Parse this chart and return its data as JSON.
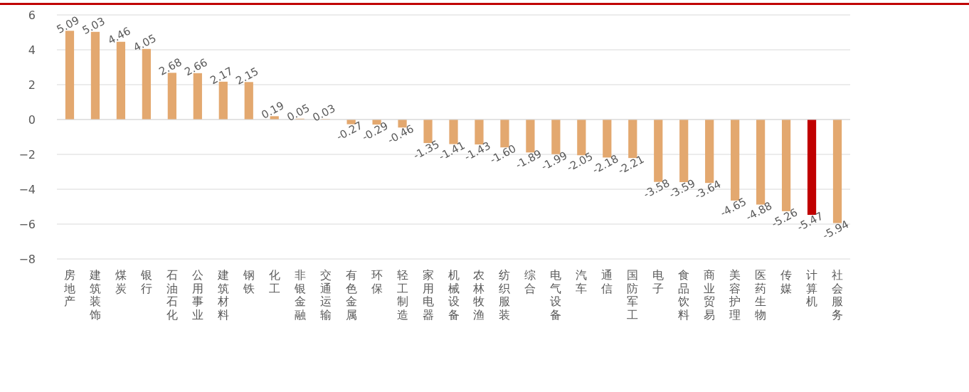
{
  "chart_data": {
    "type": "bar",
    "categories": [
      "房地产",
      "建筑装饰",
      "煤炭",
      "银行",
      "石油石化",
      "公用事业",
      "建筑材料",
      "钢铁",
      "化工",
      "非银金融",
      "交通运输",
      "有色金属",
      "环保",
      "轻工制造",
      "家用电器",
      "机械设备",
      "农林牧渔",
      "纺织服装",
      "综合",
      "电气设备",
      "汽车",
      "通信",
      "国防军工",
      "电子",
      "食品饮料",
      "商业贸易",
      "美容护理",
      "医药生物",
      "传媒",
      "计算机",
      "社会服务"
    ],
    "values": [
      5.09,
      5.03,
      4.46,
      4.05,
      2.68,
      2.66,
      2.17,
      2.15,
      0.19,
      0.05,
      0.03,
      -0.27,
      -0.29,
      -0.46,
      -1.35,
      -1.41,
      -1.43,
      -1.6,
      -1.89,
      -1.99,
      -2.05,
      -2.18,
      -2.21,
      -3.58,
      -3.59,
      -3.64,
      -4.65,
      -4.88,
      -5.26,
      -5.47,
      -5.94
    ],
    "colors": [
      "#e3a86f",
      "#e3a86f",
      "#e3a86f",
      "#e3a86f",
      "#e3a86f",
      "#e3a86f",
      "#e3a86f",
      "#e3a86f",
      "#e3a86f",
      "#e3a86f",
      "#e3a86f",
      "#e3a86f",
      "#e3a86f",
      "#e3a86f",
      "#e3a86f",
      "#e3a86f",
      "#e3a86f",
      "#e3a86f",
      "#e3a86f",
      "#e3a86f",
      "#e3a86f",
      "#e3a86f",
      "#e3a86f",
      "#e3a86f",
      "#e3a86f",
      "#e3a86f",
      "#e3a86f",
      "#e3a86f",
      "#e3a86f",
      "#c00000",
      "#e3a86f"
    ],
    "value_labels": [
      "5.09",
      "5.03",
      "4.46",
      "4.05",
      "2.68",
      "2.66",
      "2.17",
      "2.15",
      "0.19",
      "0.05",
      "0.03",
      "-0.27",
      "-0.29",
      "-0.46",
      "-1.35",
      "-1.41",
      "-1.43",
      "-1.60",
      "-1.89",
      "-1.99",
      "-2.05",
      "-2.18",
      "-2.21",
      "-3.58",
      "-3.59",
      "-3.64",
      "-4.65",
      "-4.88",
      "-5.26",
      "-5.47",
      "-5.94"
    ],
    "ylim": [
      -8,
      6
    ],
    "yticks": [
      -8,
      -6,
      -4,
      -2,
      0,
      2,
      4,
      6
    ],
    "grid": "y"
  }
}
